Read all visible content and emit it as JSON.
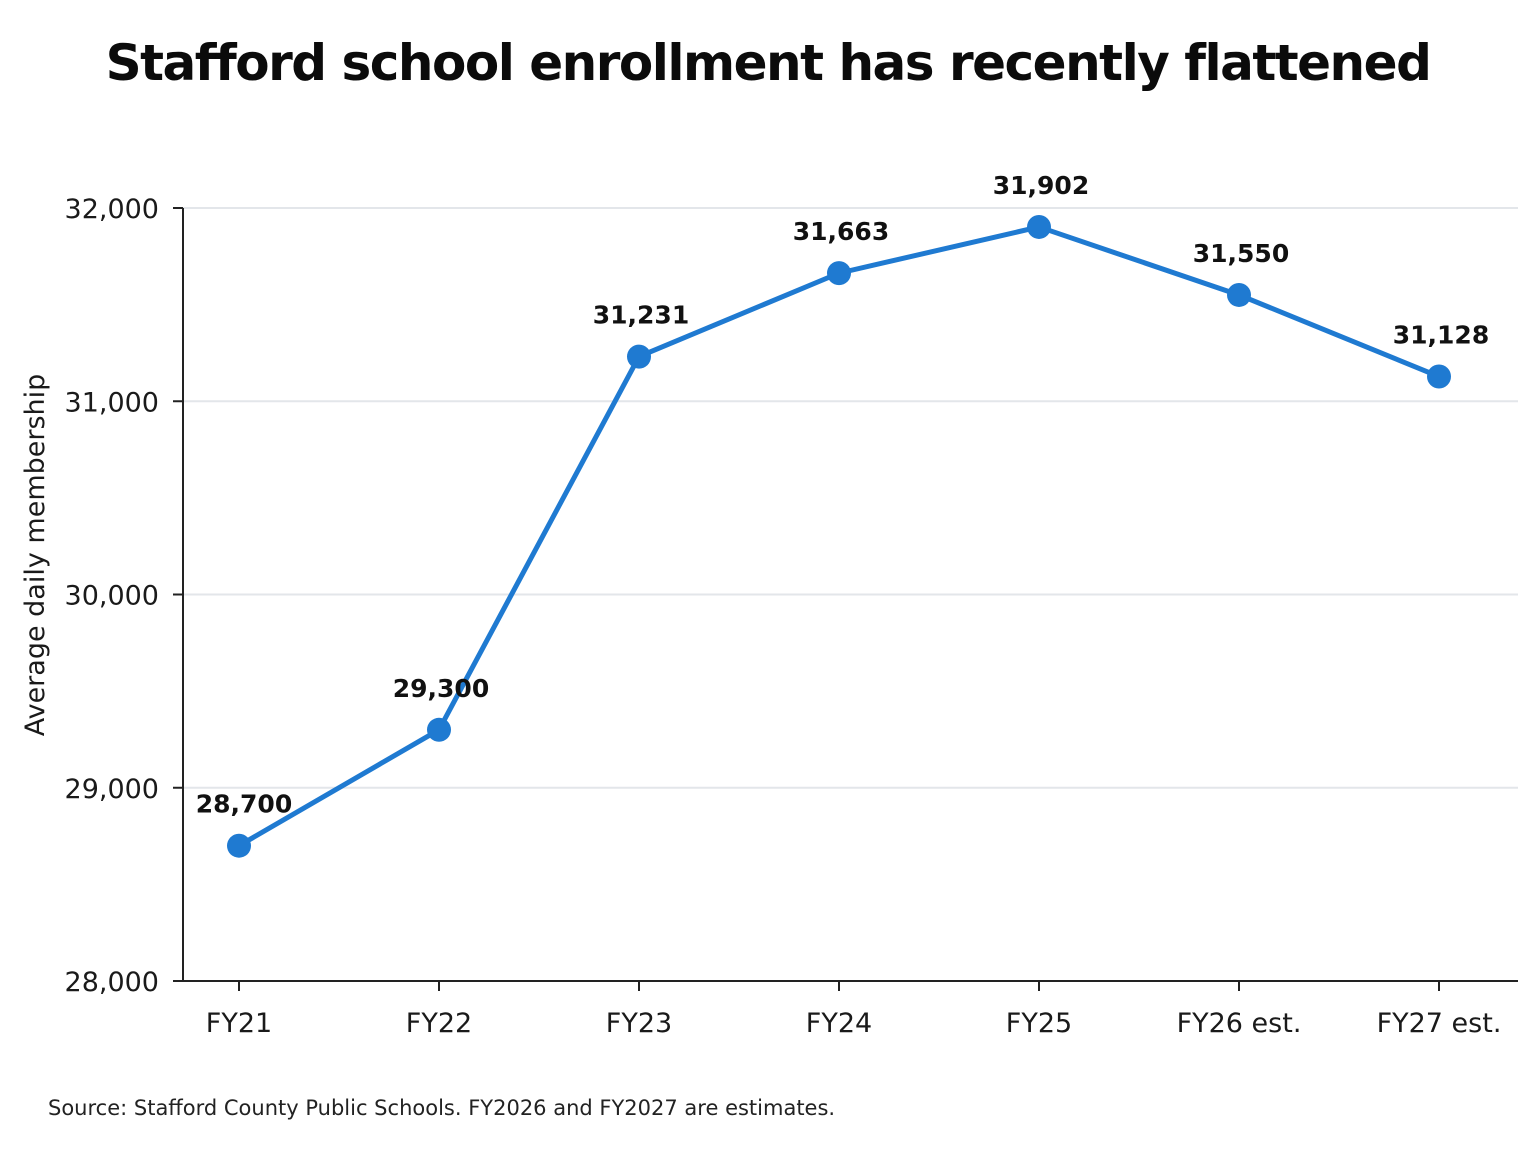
{
  "chart_data": {
    "type": "line",
    "title": "Stafford school enrollment has recently flattened",
    "xlabel": "",
    "ylabel": "Average daily membership",
    "categories": [
      "FY21",
      "FY22",
      "FY23",
      "FY24",
      "FY25",
      "FY26 est.",
      "FY27 est."
    ],
    "series": [
      {
        "values": [
          28700,
          29300,
          31231,
          31663,
          31902,
          31550,
          31128
        ],
        "data_labels": [
          "28,700",
          "29,300",
          "31,231",
          "31,663",
          "31,902",
          "31,550",
          "31,128"
        ],
        "color": "#1f7ad1"
      }
    ],
    "ylim": [
      28000,
      32000
    ],
    "yticks": [
      28000,
      29000,
      30000,
      31000,
      32000
    ],
    "ytick_labels": [
      "28,000",
      "29,000",
      "30,000",
      "31,000",
      "32,000"
    ],
    "grid": "horizontal",
    "legend": "none",
    "source": "Source: Stafford County Public Schools. FY2026 and FY2027 are estimates."
  },
  "colors": {
    "line": "#1f7ad1",
    "grid": "#e3e6ea",
    "axis": "#222222"
  }
}
